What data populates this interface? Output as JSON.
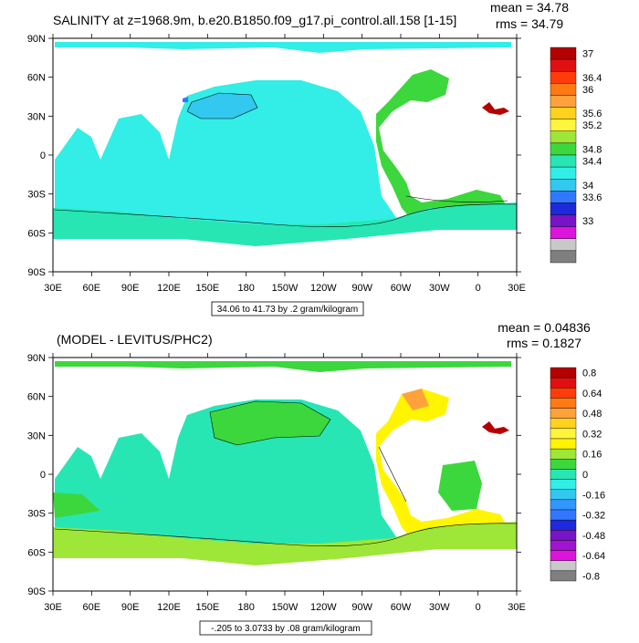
{
  "chart_data": [
    {
      "type": "heatmap",
      "title": "SALINITY at z=1968.9m, b.e20.B1850.f09_g17.pi_control.all.158 [1-15]",
      "stats": {
        "mean": "mean = 34.78",
        "rms": "rms = 34.79"
      },
      "x_ticks": [
        "30E",
        "60E",
        "90E",
        "120E",
        "150E",
        "180",
        "150W",
        "120W",
        "90W",
        "60W",
        "30W",
        "0",
        "30E"
      ],
      "y_ticks": [
        "90N",
        "60N",
        "30N",
        "0",
        "30S",
        "60S",
        "90S"
      ],
      "xlim_deg_east": [
        30,
        390
      ],
      "ylim_deg_north": [
        -90,
        90
      ],
      "contour_info": "34.06 to 41.73 by .2 gram/kilogram",
      "colorbar": {
        "labels": [
          "37",
          "36.4",
          "36",
          "35.6",
          "35.2",
          "34.8",
          "34.4",
          "34",
          "33.6",
          "33"
        ],
        "label_positions": [
          0,
          2,
          3,
          5,
          6,
          8,
          9,
          11,
          12,
          14
        ],
        "colors": [
          "#b50000",
          "#e01010",
          "#ff3c0a",
          "#ff7a14",
          "#ffa23c",
          "#ffd21e",
          "#fff53c",
          "#9ee637",
          "#3cd73c",
          "#28e6b4",
          "#32eee6",
          "#32c8f0",
          "#3278ff",
          "#1e28dc",
          "#7814c8",
          "#dc14dc",
          "#c8c8c8",
          "#7f7f7f"
        ]
      }
    },
    {
      "type": "heatmap",
      "title": "(MODEL - LEVITUS/PHC2)",
      "stats": {
        "mean": "mean = 0.04836",
        "rms": "rms = 0.1827"
      },
      "x_ticks": [
        "30E",
        "60E",
        "90E",
        "120E",
        "150E",
        "180",
        "150W",
        "120W",
        "90W",
        "60W",
        "30W",
        "0",
        "30E"
      ],
      "y_ticks": [
        "90N",
        "60N",
        "30N",
        "0",
        "30S",
        "60S",
        "90S"
      ],
      "xlim_deg_east": [
        30,
        390
      ],
      "ylim_deg_north": [
        -90,
        90
      ],
      "contour_info": "-.205 to 3.0733 by .08 gram/kilogram",
      "colorbar": {
        "labels": [
          "0.8",
          "0.64",
          "0.48",
          "0.32",
          "0.16",
          "0",
          "-0.16",
          "-0.32",
          "-0.48",
          "-0.64",
          "-0.8"
        ],
        "label_positions": [
          0,
          2,
          4,
          6,
          8,
          10,
          12,
          14,
          16,
          18,
          20
        ],
        "colors": [
          "#b50000",
          "#e01010",
          "#ff3c0a",
          "#ff7a14",
          "#ffa23c",
          "#ffd21e",
          "#fff53c",
          "#fff500",
          "#9ee637",
          "#3cd73c",
          "#28e6b4",
          "#32eee6",
          "#32c8f0",
          "#3296ff",
          "#3278ff",
          "#1e28dc",
          "#7814c8",
          "#a014d2",
          "#dc14dc",
          "#c8c8c8",
          "#7f7f7f"
        ]
      }
    }
  ]
}
